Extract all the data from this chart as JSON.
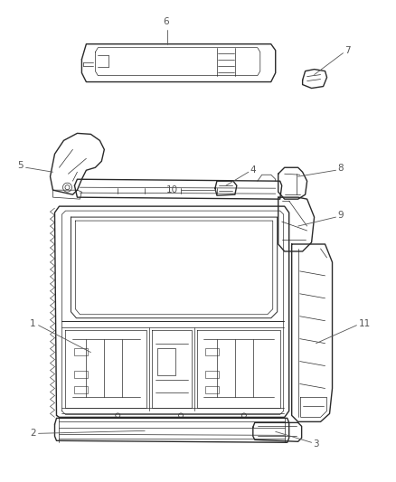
{
  "bg_color": "#ffffff",
  "line_color": "#2a2a2a",
  "label_color": "#555555",
  "figsize": [
    4.38,
    5.33
  ],
  "dpi": 100,
  "lw_main": 1.0,
  "lw_thin": 0.5,
  "lw_med": 0.7,
  "label_fs": 7.5
}
